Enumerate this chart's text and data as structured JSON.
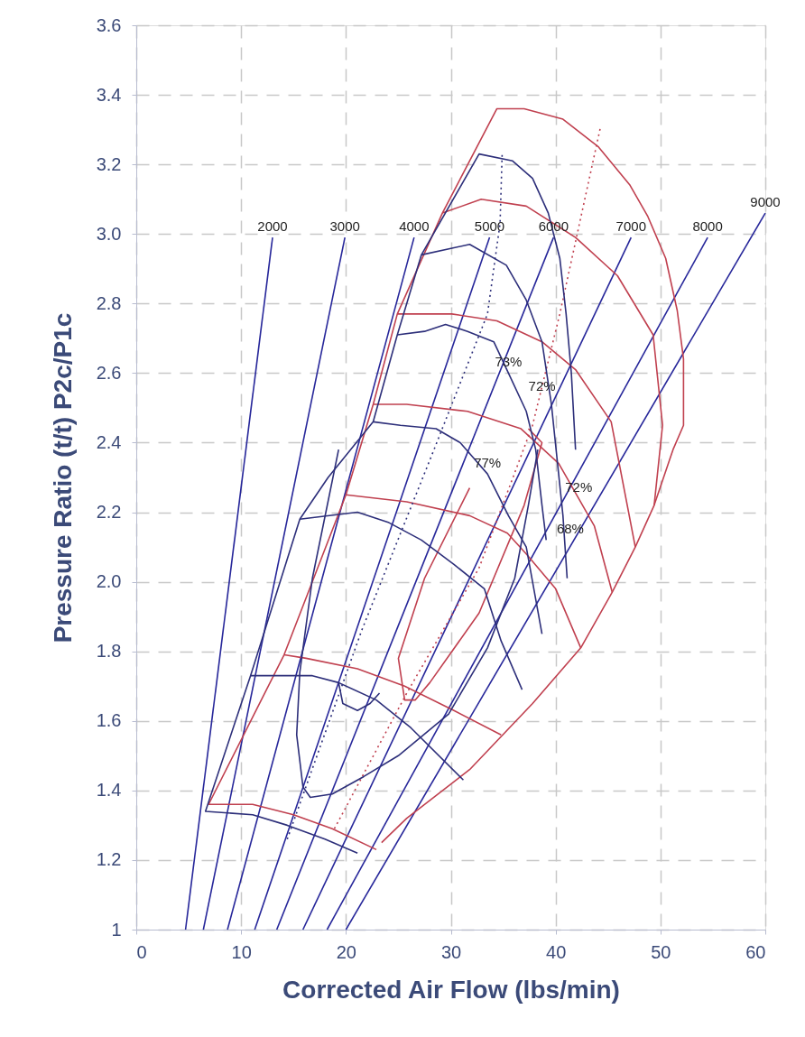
{
  "chart_data": {
    "type": "line",
    "xlabel": "Corrected Air Flow (lbs/min)",
    "ylabel": "Pressure Ratio (t/t) P2c/P1c",
    "xlim": [
      0,
      60
    ],
    "xticks": [
      0,
      10,
      20,
      30,
      40,
      50,
      60
    ],
    "ylim": [
      1,
      3.6
    ],
    "yticks": [
      {
        "value": 1,
        "label": "1"
      },
      1.2,
      1.4,
      1.6,
      1.8,
      {
        "value": 2,
        "label": "2.0"
      },
      2.2,
      2.4,
      2.6,
      2.8,
      {
        "value": 3,
        "label": "3.0"
      },
      3.2,
      3.4,
      3.6
    ],
    "grid": true,
    "marker": "none",
    "line_style": "solid",
    "series": [
      {
        "color": "#27279a",
        "x": [
          4.7,
          13.0
        ],
        "values": [
          1,
          2.99
        ]
      },
      {
        "color": "#27279a",
        "x": [
          6.4,
          19.9
        ],
        "values": [
          1,
          2.99
        ]
      },
      {
        "color": "#27279a",
        "x": [
          8.7,
          26.5
        ],
        "values": [
          1,
          2.99
        ]
      },
      {
        "color": "#27279a",
        "x": [
          11.3,
          33.7
        ],
        "values": [
          1,
          2.99
        ]
      },
      {
        "color": "#27279a",
        "x": [
          13.4,
          39.8
        ],
        "values": [
          1,
          2.99
        ]
      },
      {
        "color": "#27279a",
        "x": [
          15.9,
          47.2
        ],
        "values": [
          1,
          2.99
        ]
      },
      {
        "color": "#27279a",
        "x": [
          18.2,
          54.5
        ],
        "values": [
          1,
          2.99
        ]
      },
      {
        "color": "#27279a",
        "x": [
          20.0,
          60.0
        ],
        "values": [
          1,
          3.06
        ]
      },
      {
        "color": "#c0404f",
        "x": [
          22.9,
          18.7,
          15.0,
          11.1,
          6.9,
          14.1,
          20.0,
          22.6,
          24.9,
          29.2,
          34.4,
          37.0,
          40.7,
          44.1,
          47.1,
          48.8,
          50.5,
          51.6,
          52.2,
          52.2,
          51.2,
          49.4,
          47.6,
          45.4,
          42.4,
          37.8,
          31.8,
          25.8,
          23.4
        ],
        "values": [
          1.23,
          1.29,
          1.33,
          1.36,
          1.36,
          1.79,
          2.25,
          2.51,
          2.77,
          3.06,
          3.36,
          3.36,
          3.33,
          3.25,
          3.14,
          3.05,
          2.93,
          2.78,
          2.64,
          2.45,
          2.38,
          2.22,
          2.1,
          1.97,
          1.81,
          1.65,
          1.46,
          1.32,
          1.25
        ]
      },
      {
        "color": "#c0404f",
        "x": [
          29.2,
          32.9,
          37.2,
          41.9,
          45.9,
          49.3,
          50.2,
          49.4
        ],
        "values": [
          3.06,
          3.1,
          3.08,
          2.99,
          2.88,
          2.71,
          2.45,
          2.22
        ]
      },
      {
        "color": "#c0404f",
        "x": [
          24.9,
          30.1,
          34.4,
          38.7,
          41.9,
          45.3,
          47.6
        ],
        "values": [
          2.77,
          2.77,
          2.75,
          2.69,
          2.61,
          2.46,
          2.1
        ]
      },
      {
        "color": "#c0404f",
        "x": [
          22.6,
          25.8,
          31.6,
          36.7,
          40.3,
          43.7,
          45.4
        ],
        "values": [
          2.51,
          2.51,
          2.49,
          2.44,
          2.34,
          2.16,
          1.97
        ]
      },
      {
        "color": "#c0404f",
        "x": [
          20.0,
          25.8,
          31.8,
          35.4,
          37.2,
          40.0,
          42.4
        ],
        "values": [
          2.25,
          2.23,
          2.19,
          2.14,
          2.08,
          1.98,
          1.81
        ]
      },
      {
        "color": "#c0404f",
        "x": [
          14.1,
          16.2,
          21.1,
          25.6,
          30.3,
          34.8
        ],
        "values": [
          1.79,
          1.78,
          1.75,
          1.7,
          1.63,
          1.56
        ]
      },
      {
        "color": "#c0404f",
        "x": [
          31.8,
          27.5,
          25.0,
          25.6,
          26.6,
          28.0,
          32.7,
          37.0,
          38.7,
          37.4
        ],
        "values": [
          2.27,
          2.01,
          1.78,
          1.66,
          1.66,
          1.71,
          1.91,
          2.22,
          2.4,
          2.44
        ]
      },
      {
        "color": "#c0404f",
        "line_style": "dotted",
        "x": [
          18.9,
          25.8,
          32.7,
          37.8,
          40.4,
          44.3
        ],
        "values": [
          1.29,
          1.68,
          2.04,
          2.45,
          2.77,
          3.31
        ]
      },
      {
        "color": "#2d2f7a",
        "x": [
          21.1,
          18.0,
          14.4,
          11.1,
          6.6,
          10.9,
          15.6,
          18.3,
          22.6,
          24.9,
          27.2,
          32.7,
          35.9,
          37.8,
          39.3,
          40.4,
          41.0,
          41.5,
          41.9
        ],
        "values": [
          1.22,
          1.26,
          1.3,
          1.33,
          1.34,
          1.73,
          2.18,
          2.3,
          2.46,
          2.71,
          2.94,
          3.23,
          3.21,
          3.16,
          3.06,
          2.93,
          2.77,
          2.6,
          2.38
        ]
      },
      {
        "color": "#2d2f7a",
        "x": [
          27.2,
          31.8,
          35.3,
          37.2,
          38.7,
          39.6,
          40.7,
          41.1
        ],
        "values": [
          2.94,
          2.97,
          2.91,
          2.81,
          2.69,
          2.51,
          2.19,
          2.01
        ]
      },
      {
        "color": "#2d2f7a",
        "x": [
          24.9,
          27.5,
          29.5,
          31.6,
          34.1,
          35.5,
          37.2,
          38.1,
          38.7,
          39.1
        ],
        "values": [
          2.71,
          2.72,
          2.74,
          2.72,
          2.69,
          2.6,
          2.49,
          2.38,
          2.22,
          2.12
        ]
      },
      {
        "color": "#2d2f7a",
        "x": [
          22.6,
          25.2,
          28.6,
          30.9,
          33.5,
          35.5,
          37.2,
          38.7
        ],
        "values": [
          2.46,
          2.45,
          2.44,
          2.4,
          2.31,
          2.19,
          2.1,
          1.85
        ]
      },
      {
        "color": "#2d2f7a",
        "x": [
          15.6,
          21.1,
          24.1,
          27.2,
          30.3,
          33.2,
          34.8,
          36.8
        ],
        "values": [
          2.18,
          2.2,
          2.17,
          2.12,
          2.05,
          1.98,
          1.83,
          1.69
        ]
      },
      {
        "color": "#2d2f7a",
        "x": [
          10.9,
          16.8,
          19.3,
          22.9,
          26.2,
          31.2
        ],
        "values": [
          1.73,
          1.73,
          1.71,
          1.66,
          1.58,
          1.43
        ]
      },
      {
        "color": "#2d2f7a",
        "x": [
          19.3,
          19.7,
          21.1,
          22.3,
          23.2
        ],
        "values": [
          1.71,
          1.65,
          1.63,
          1.65,
          1.68
        ]
      },
      {
        "color": "#2d2f7a",
        "x": [
          19.3,
          16.8,
          15.6,
          15.3,
          15.9,
          16.6,
          18.7,
          21.7,
          25.0,
          29.8,
          33.5,
          36.1,
          37.4,
          38.3
        ],
        "values": [
          2.38,
          2.01,
          1.74,
          1.56,
          1.41,
          1.38,
          1.39,
          1.44,
          1.5,
          1.62,
          1.81,
          2.01,
          2.22,
          2.38
        ]
      },
      {
        "color": "#2d2f7a",
        "line_style": "dotted",
        "x": [
          14.4,
          21.5,
          28.4,
          33.5,
          34.7,
          34.9
        ],
        "values": [
          1.26,
          1.86,
          2.38,
          2.77,
          3.03,
          3.23
        ]
      }
    ],
    "annotations": [
      {
        "text": "2000",
        "x": 13.0,
        "y": 2.99
      },
      {
        "text": "3000",
        "x": 19.9,
        "y": 2.99
      },
      {
        "text": "4000",
        "x": 26.5,
        "y": 2.99
      },
      {
        "text": "5000",
        "x": 33.7,
        "y": 2.99
      },
      {
        "text": "6000",
        "x": 39.8,
        "y": 2.99
      },
      {
        "text": "7000",
        "x": 47.2,
        "y": 2.99
      },
      {
        "text": "8000",
        "x": 54.5,
        "y": 2.99
      },
      {
        "text": "9000",
        "x": 60.0,
        "y": 3.06
      },
      {
        "text": "73%",
        "x": 35.5,
        "y": 2.6
      },
      {
        "text": "72%",
        "x": 38.7,
        "y": 2.53
      },
      {
        "text": "77%",
        "x": 33.5,
        "y": 2.31
      },
      {
        "text": "72%",
        "x": 42.2,
        "y": 2.24
      },
      {
        "text": "68%",
        "x": 41.4,
        "y": 2.12
      }
    ]
  }
}
